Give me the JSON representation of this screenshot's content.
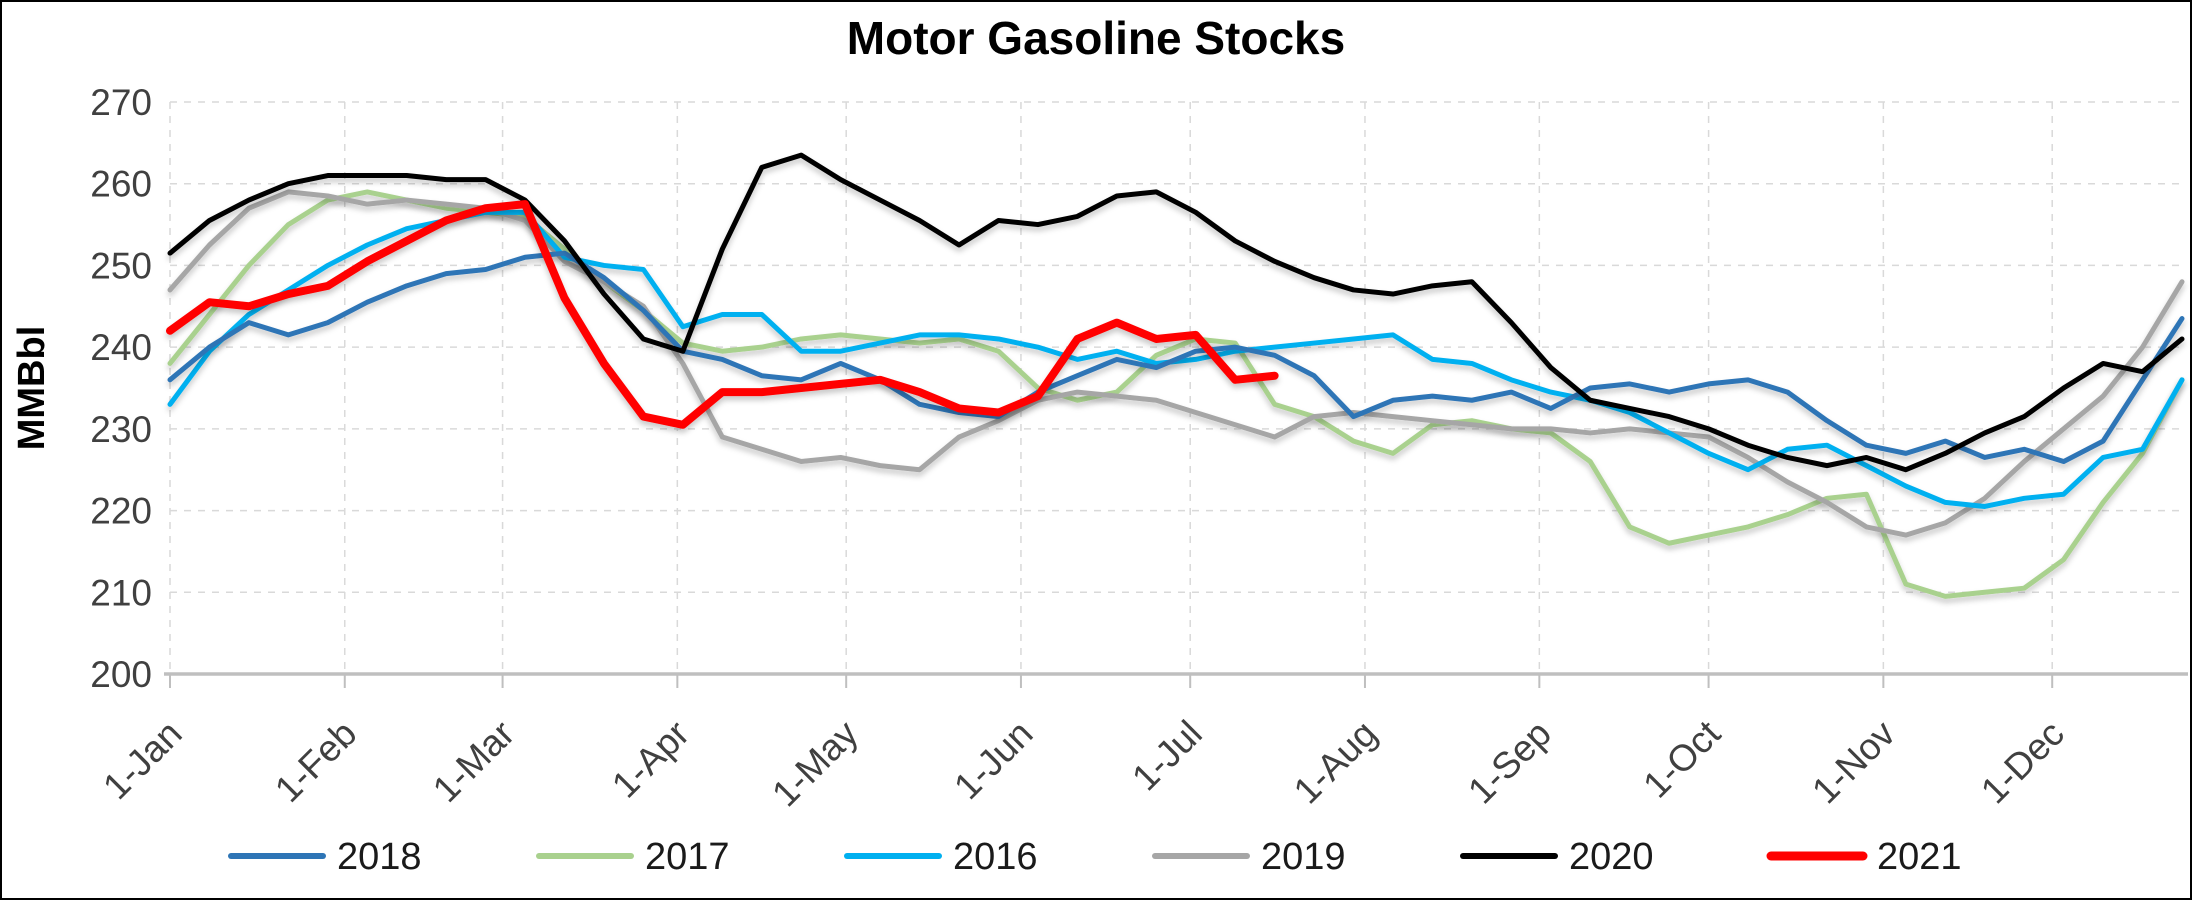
{
  "chart_data": {
    "type": "line",
    "title": "Motor Gasoline Stocks",
    "ylabel": "MMBbl",
    "ylim": [
      200,
      270
    ],
    "y_ticks": [
      200,
      210,
      220,
      230,
      240,
      250,
      260,
      270
    ],
    "grid": "dashed",
    "legend_position": "bottom",
    "x_axis": {
      "tick_labels": [
        "1-Jan",
        "1-Feb",
        "1-Mar",
        "1-Apr",
        "1-May",
        "1-Jun",
        "1-Jul",
        "1-Aug",
        "1-Sep",
        "1-Oct",
        "1-Nov",
        "1-Dec"
      ],
      "tick_weeks": [
        0,
        4.43,
        8.43,
        12.86,
        17.14,
        21.57,
        25.86,
        30.29,
        34.71,
        39,
        43.43,
        47.71
      ],
      "weeks_total": 51,
      "unit": "week of year"
    },
    "series": [
      {
        "name": "2017",
        "color": "#A9D18E",
        "line_width": 5,
        "values": [
          238,
          244,
          250,
          255,
          258,
          259,
          258,
          257,
          256.5,
          256,
          252,
          248,
          244.5,
          240.5,
          239.5,
          240,
          241,
          241.5,
          241,
          240.5,
          241,
          239.5,
          235,
          233.5,
          234.5,
          239,
          241,
          240.5,
          233,
          231.5,
          228.5,
          227,
          230.5,
          231,
          230,
          229.5,
          226,
          218,
          216,
          217,
          218,
          219.5,
          221.5,
          222,
          211,
          209.5,
          210,
          210.5,
          214,
          221,
          227,
          236
        ]
      },
      {
        "name": "2019",
        "color": "#A6A6A6",
        "line_width": 5,
        "values": [
          247,
          252.5,
          257,
          259,
          258.5,
          257.5,
          258,
          257.5,
          257,
          255.5,
          250.5,
          248,
          245,
          238,
          229,
          227.5,
          226,
          226.5,
          225.5,
          225,
          229,
          231,
          233.5,
          234.5,
          234,
          233.5,
          232,
          230.5,
          229,
          231.5,
          232,
          231.5,
          231,
          230.5,
          230,
          230,
          229.5,
          230,
          229.5,
          229,
          226.5,
          223.5,
          221,
          218,
          217,
          218.5,
          221.5,
          226,
          230,
          234,
          240,
          248
        ]
      },
      {
        "name": "2016",
        "color": "#00B0F0",
        "line_width": 5,
        "values": [
          233,
          239.5,
          244,
          247,
          250,
          252.5,
          254.5,
          255.5,
          256.5,
          256.5,
          251,
          250,
          249.5,
          242.5,
          244,
          244,
          239.5,
          239.5,
          240.5,
          241.5,
          241.5,
          241,
          240,
          238.5,
          239.5,
          238,
          238.5,
          239.5,
          240,
          240.5,
          241,
          241.5,
          238.5,
          238,
          236,
          234.5,
          233.5,
          232,
          229.5,
          227,
          225,
          227.5,
          228,
          225.5,
          223,
          221,
          220.5,
          221.5,
          222,
          226.5,
          227.5,
          236
        ]
      },
      {
        "name": "2018",
        "color": "#2E75B6",
        "line_width": 5,
        "values": [
          236,
          240,
          243,
          241.5,
          243,
          245.5,
          247.5,
          249,
          249.5,
          251,
          251.5,
          248.5,
          244.5,
          239.5,
          238.5,
          236.5,
          236,
          238,
          236,
          233,
          232,
          231.5,
          234.5,
          236.5,
          238.5,
          237.5,
          239.5,
          240,
          239,
          236.5,
          231.5,
          233.5,
          234,
          233.5,
          234.5,
          232.5,
          235,
          235.5,
          234.5,
          235.5,
          236,
          234.5,
          231,
          228,
          227,
          228.5,
          226.5,
          227.5,
          226,
          228.5,
          236,
          243.5
        ]
      },
      {
        "name": "2020",
        "color": "#000000",
        "line_width": 5,
        "values": [
          251.5,
          255.5,
          258,
          260,
          261,
          261,
          261,
          260.5,
          260.5,
          258,
          253,
          246.5,
          241,
          239.5,
          252,
          262,
          263.5,
          260.5,
          258,
          255.5,
          252.5,
          255.5,
          255,
          256,
          258.5,
          259,
          256.5,
          253,
          250.5,
          248.5,
          247,
          246.5,
          247.5,
          248,
          243,
          237.5,
          233.5,
          232.5,
          231.5,
          230,
          228,
          226.5,
          225.5,
          226.5,
          225,
          227,
          229.5,
          231.5,
          235,
          238,
          237,
          241
        ]
      },
      {
        "name": "2021",
        "color": "#FF0000",
        "line_width": 8,
        "values": [
          242,
          245.5,
          245,
          246.5,
          247.5,
          250.5,
          253,
          255.5,
          257,
          257.5,
          246,
          238,
          231.5,
          230.5,
          234.5,
          234.5,
          235,
          235.5,
          236,
          234.5,
          232.5,
          232,
          234,
          241,
          243,
          241,
          241.5,
          236,
          236.5
        ]
      }
    ],
    "legend_order": [
      "2018",
      "2017",
      "2016",
      "2019",
      "2020",
      "2021"
    ]
  },
  "colors": {
    "gridline": "#D9D9D9",
    "axis": "#BFBFBF",
    "tick_text": "#404040",
    "title_text": "#000000"
  }
}
